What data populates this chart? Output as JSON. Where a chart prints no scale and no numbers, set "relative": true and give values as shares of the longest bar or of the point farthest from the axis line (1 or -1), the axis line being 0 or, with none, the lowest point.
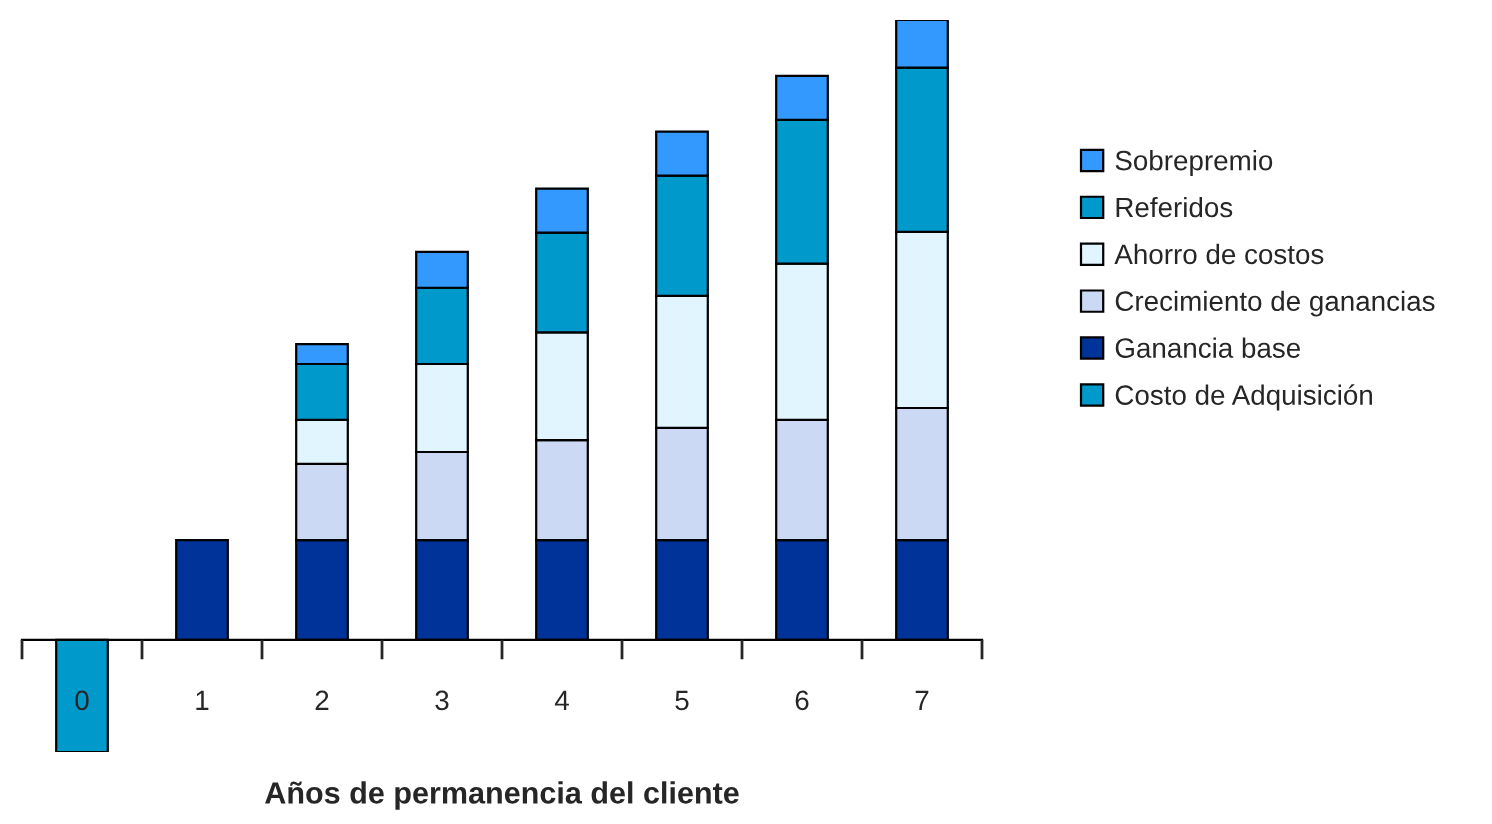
{
  "chart_data": {
    "type": "bar",
    "stacked": true,
    "relative": true,
    "xlabel": "Años de permanencia del cliente",
    "categories": [
      "0",
      "1",
      "2",
      "3",
      "4",
      "5",
      "6",
      "7"
    ],
    "series": [
      {
        "name": "Costo de Adquisición",
        "color": "#0099cc",
        "values": [
          -0.181,
          null,
          null,
          null,
          null,
          null,
          null,
          null
        ]
      },
      {
        "name": "Ganancia base",
        "color": "#003399",
        "values": [
          null,
          0.161,
          0.161,
          0.161,
          0.161,
          0.161,
          0.161,
          0.161
        ]
      },
      {
        "name": "Crecimiento de ganancias",
        "color": "#ccd9f5",
        "values": [
          null,
          null,
          0.123,
          0.142,
          0.161,
          0.181,
          0.194,
          0.213
        ]
      },
      {
        "name": "Ahorro de costos",
        "color": "#e0f5ff",
        "values": [
          null,
          null,
          0.071,
          0.142,
          0.174,
          0.213,
          0.252,
          0.284
        ]
      },
      {
        "name": "Referidos",
        "color": "#0099cc",
        "values": [
          null,
          null,
          0.09,
          0.123,
          0.161,
          0.194,
          0.232,
          0.265
        ]
      },
      {
        "name": "Sobrepremio",
        "color": "#3399ff",
        "values": [
          null,
          null,
          0.032,
          0.058,
          0.071,
          0.071,
          0.071,
          0.077
        ]
      }
    ],
    "legend": "right",
    "grid": false
  }
}
